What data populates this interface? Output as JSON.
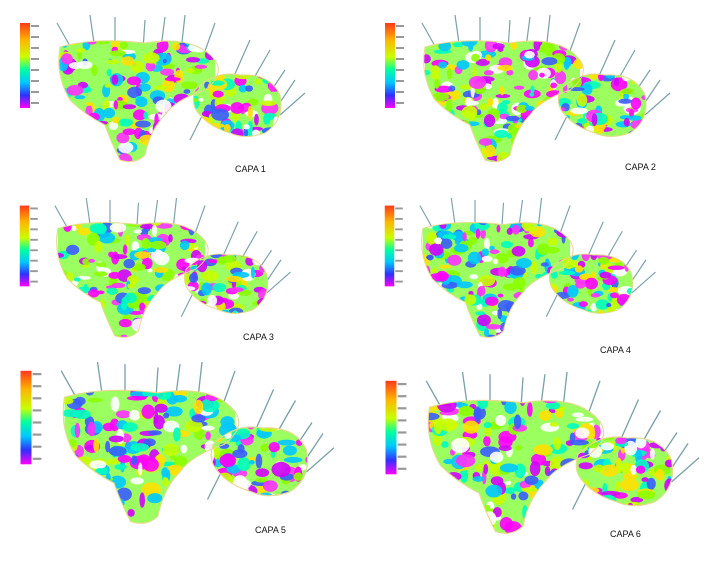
{
  "panels": [
    {
      "label": "CAPA 1"
    },
    {
      "label": "CAPA 2"
    },
    {
      "label": "CAPA 3"
    },
    {
      "label": "CAPA 4"
    },
    {
      "label": "CAPA 5"
    },
    {
      "label": "CAPA 6"
    }
  ]
}
